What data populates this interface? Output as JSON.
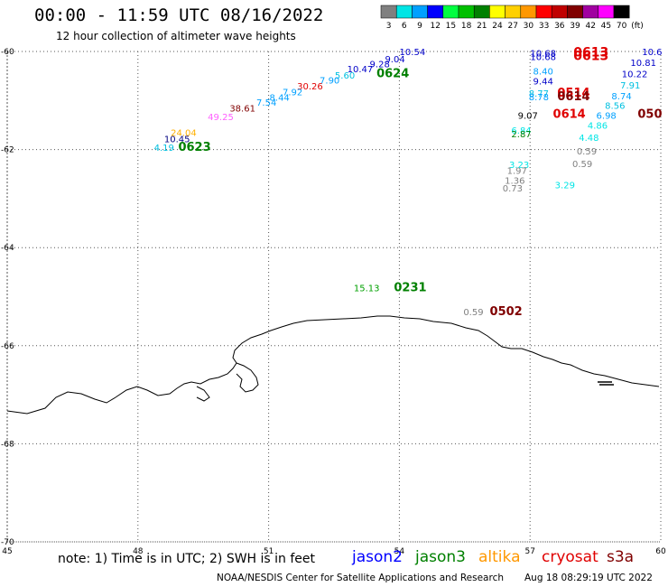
{
  "header": {
    "title": "00:00 - 11:59 UTC 08/16/2022",
    "subtitle": "12 hour collection of altimeter wave heights"
  },
  "colorbar": {
    "levels": [
      "3",
      "6",
      "9",
      "12",
      "15",
      "18",
      "21",
      "24",
      "27",
      "30",
      "33",
      "36",
      "39",
      "42",
      "45",
      "70"
    ],
    "unit": "(ft)",
    "colors": [
      "#808080",
      "#00e5e5",
      "#00a0ff",
      "#0000ff",
      "#00ff40",
      "#00c000",
      "#008000",
      "#ffff00",
      "#ffd000",
      "#ff9800",
      "#ff0000",
      "#c00000",
      "#800000",
      "#a000a0",
      "#ff00ff",
      "#000000"
    ]
  },
  "axes": {
    "lat_labels": [
      "-60",
      "-62",
      "-64",
      "-66",
      "-68",
      "-70"
    ],
    "lon_labels": [
      "45",
      "48",
      "51",
      "54",
      "57",
      "60"
    ]
  },
  "footer": {
    "note": "note: 1) Time is in UTC; 2) SWH is in feet",
    "credit": "NOAA/NESDIS Center for Satellite Applications and Research",
    "generated": "Aug 18 08:29:19 UTC 2022"
  },
  "satellites": [
    {
      "name": "jason2",
      "color": "#0000ff"
    },
    {
      "name": "jason3",
      "color": "#008000"
    },
    {
      "name": "altika",
      "color": "#ff9800"
    },
    {
      "name": "cryosat",
      "color": "#e00000"
    },
    {
      "name": "s3a",
      "color": "#800000"
    }
  ],
  "points": [
    {
      "text": "10.54",
      "lon": 54.3,
      "lat": -60.0,
      "color": "#0000c8",
      "size": 10
    },
    {
      "text": "9.04",
      "lon": 53.9,
      "lat": -60.15,
      "color": "#0000c8",
      "size": 10
    },
    {
      "text": "9.28",
      "lon": 53.55,
      "lat": -60.25,
      "color": "#0000c8",
      "size": 10
    },
    {
      "text": "10.47",
      "lon": 53.1,
      "lat": -60.35,
      "color": "#0000c8",
      "size": 10
    },
    {
      "text": "0624",
      "lon": 53.85,
      "lat": -60.45,
      "color": "#008000",
      "size": 13,
      "bold": true
    },
    {
      "text": "5.60",
      "lon": 52.75,
      "lat": -60.48,
      "color": "#00c0e0",
      "size": 10
    },
    {
      "text": "7.90",
      "lon": 52.4,
      "lat": -60.58,
      "color": "#00a0ff",
      "size": 10
    },
    {
      "text": "30.26",
      "lon": 51.95,
      "lat": -60.7,
      "color": "#e00000",
      "size": 10
    },
    {
      "text": "7.92",
      "lon": 51.55,
      "lat": -60.82,
      "color": "#00a0ff",
      "size": 10
    },
    {
      "text": "8.44",
      "lon": 51.25,
      "lat": -60.93,
      "color": "#00a0ff",
      "size": 10
    },
    {
      "text": "7.54",
      "lon": 50.95,
      "lat": -61.03,
      "color": "#00a0ff",
      "size": 10
    },
    {
      "text": "38.61",
      "lon": 50.4,
      "lat": -61.15,
      "color": "#800000",
      "size": 10
    },
    {
      "text": "49.25",
      "lon": 49.9,
      "lat": -61.33,
      "color": "#ff60ff",
      "size": 10
    },
    {
      "text": "24.04",
      "lon": 49.05,
      "lat": -61.65,
      "color": "#ffb000",
      "size": 10
    },
    {
      "text": "10.45",
      "lon": 48.9,
      "lat": -61.78,
      "color": "#000080",
      "size": 10
    },
    {
      "text": "0623",
      "lon": 49.3,
      "lat": -61.95,
      "color": "#008000",
      "size": 13,
      "bold": true
    },
    {
      "text": "4.19",
      "lon": 48.6,
      "lat": -61.95,
      "color": "#00c0e0",
      "size": 10
    },
    {
      "text": "10.68",
      "lon": 57.3,
      "lat": -60.03,
      "color": "#0000c8",
      "size": 10
    },
    {
      "text": "10.68",
      "lon": 57.3,
      "lat": -60.1,
      "color": "#0000c8",
      "size": 10
    },
    {
      "text": "0613",
      "lon": 58.4,
      "lat": -60.03,
      "color": "#e00000",
      "size": 14,
      "bold": true
    },
    {
      "text": "0613",
      "lon": 58.4,
      "lat": -60.1,
      "color": "#e00000",
      "size": 14,
      "bold": true
    },
    {
      "text": "8.40",
      "lon": 57.3,
      "lat": -60.4,
      "color": "#00a0ff",
      "size": 10
    },
    {
      "text": "9.44",
      "lon": 57.3,
      "lat": -60.6,
      "color": "#0000c8",
      "size": 10
    },
    {
      "text": "8.77",
      "lon": 57.2,
      "lat": -60.85,
      "color": "#00c0e0",
      "size": 10
    },
    {
      "text": "8.78",
      "lon": 57.2,
      "lat": -60.92,
      "color": "#00a0ff",
      "size": 10
    },
    {
      "text": "0514",
      "lon": 58.0,
      "lat": -60.85,
      "color": "#e00000",
      "size": 13,
      "bold": true
    },
    {
      "text": "0614",
      "lon": 58.0,
      "lat": -60.92,
      "color": "#800000",
      "size": 13,
      "bold": true
    },
    {
      "text": "0614",
      "lon": 57.9,
      "lat": -61.28,
      "color": "#e00000",
      "size": 13,
      "bold": true
    },
    {
      "text": "9.07",
      "lon": 56.95,
      "lat": -61.3,
      "color": "#000000",
      "size": 10
    },
    {
      "text": "6.84",
      "lon": 56.8,
      "lat": -61.6,
      "color": "#00e5e5",
      "size": 10
    },
    {
      "text": "2.87",
      "lon": 56.8,
      "lat": -61.68,
      "color": "#008000",
      "size": 10
    },
    {
      "text": "3.23",
      "lon": 56.75,
      "lat": -62.3,
      "color": "#00e5e5",
      "size": 10
    },
    {
      "text": "1.97",
      "lon": 56.7,
      "lat": -62.42,
      "color": "#808080",
      "size": 10
    },
    {
      "text": "1.36",
      "lon": 56.65,
      "lat": -62.62,
      "color": "#808080",
      "size": 10
    },
    {
      "text": "0.73",
      "lon": 56.6,
      "lat": -62.78,
      "color": "#808080",
      "size": 10
    },
    {
      "text": "3.29",
      "lon": 57.8,
      "lat": -62.72,
      "color": "#00e5e5",
      "size": 10
    },
    {
      "text": "0.59",
      "lon": 58.3,
      "lat": -62.03,
      "color": "#808080",
      "size": 10
    },
    {
      "text": "0.59",
      "lon": 58.2,
      "lat": -62.28,
      "color": "#808080",
      "size": 10
    },
    {
      "text": "10.6",
      "lon": 59.8,
      "lat": -60.0,
      "color": "#0000c8",
      "size": 10
    },
    {
      "text": "10.81",
      "lon": 59.6,
      "lat": -60.22,
      "color": "#0000c8",
      "size": 10
    },
    {
      "text": "10.22",
      "lon": 59.4,
      "lat": -60.45,
      "color": "#0000c8",
      "size": 10
    },
    {
      "text": "7.91",
      "lon": 59.3,
      "lat": -60.68,
      "color": "#00c0e0",
      "size": 10
    },
    {
      "text": "8.74",
      "lon": 59.1,
      "lat": -60.9,
      "color": "#00a0ff",
      "size": 10
    },
    {
      "text": "8.56",
      "lon": 58.95,
      "lat": -61.1,
      "color": "#00c0e0",
      "size": 10
    },
    {
      "text": "6.98",
      "lon": 58.75,
      "lat": -61.3,
      "color": "#00a0ff",
      "size": 10
    },
    {
      "text": "050",
      "lon": 59.75,
      "lat": -61.28,
      "color": "#800000",
      "size": 13,
      "bold": true
    },
    {
      "text": "4.86",
      "lon": 58.55,
      "lat": -61.5,
      "color": "#00e5e5",
      "size": 10
    },
    {
      "text": "4.48",
      "lon": 58.35,
      "lat": -61.75,
      "color": "#00e5e5",
      "size": 10
    },
    {
      "text": "15.13",
      "lon": 53.25,
      "lat": -64.82,
      "color": "#00a000",
      "size": 10
    },
    {
      "text": "0231",
      "lon": 54.25,
      "lat": -64.82,
      "color": "#008000",
      "size": 13,
      "bold": true
    },
    {
      "text": "0.59",
      "lon": 55.7,
      "lat": -65.3,
      "color": "#808080",
      "size": 10
    },
    {
      "text": "0502",
      "lon": 56.45,
      "lat": -65.3,
      "color": "#800000",
      "size": 13,
      "bold": true
    }
  ]
}
